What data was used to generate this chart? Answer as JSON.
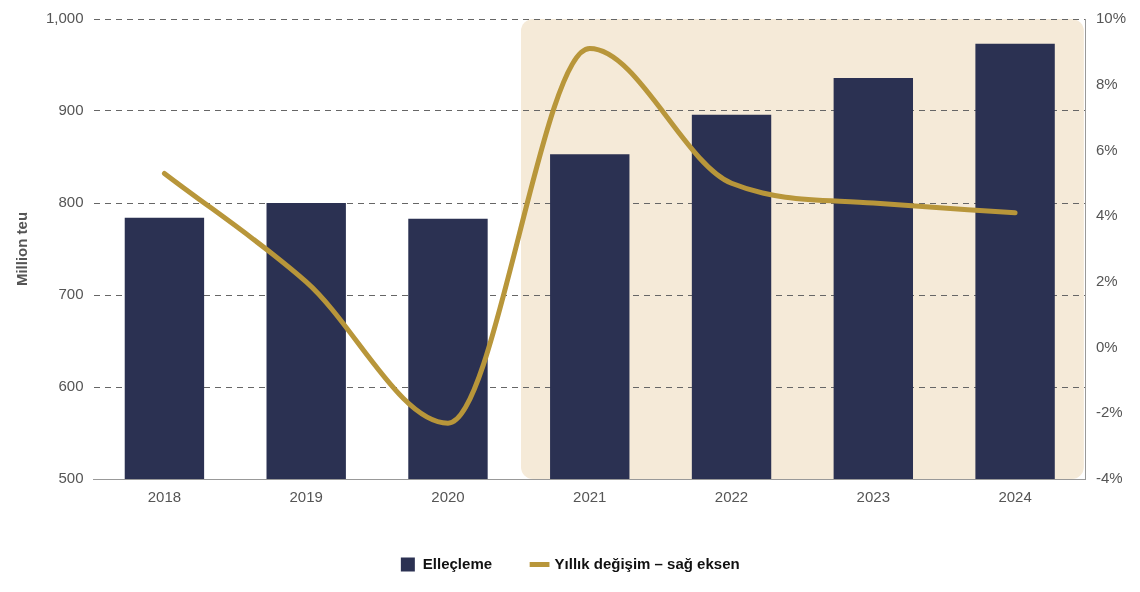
{
  "chart_data": {
    "type": "bar",
    "ylabel": "Million teu",
    "categories": [
      "2018",
      "2019",
      "2020",
      "2021",
      "2022",
      "2023",
      "2024"
    ],
    "series": [
      {
        "name": "Elleçleme",
        "color": "#2b3152",
        "values": [
          784,
          800,
          783,
          853,
          896,
          936,
          973
        ]
      },
      {
        "name": "Yıllık değişim – sağ eksen",
        "type": "line",
        "axis": "y2",
        "color": "#b8963a",
        "values": [
          5.3,
          2.0,
          -2.3,
          9.1,
          5.0,
          4.4,
          4.1
        ]
      }
    ],
    "ylim": [
      500,
      1000
    ],
    "yticks": [
      500,
      600,
      700,
      800,
      900,
      {
        "value": 1000,
        "label": "1,000"
      }
    ],
    "y2lim": [
      -4,
      10
    ],
    "y2ticks": [
      {
        "value": -4,
        "label": "-4%"
      },
      {
        "value": -2,
        "label": "-2%"
      },
      {
        "value": 0,
        "label": "0%"
      },
      {
        "value": 2,
        "label": "2%"
      },
      {
        "value": 4,
        "label": "4%"
      },
      {
        "value": 6,
        "label": "6%"
      },
      {
        "value": 8,
        "label": "8%"
      },
      {
        "value": 10,
        "label": "10%"
      }
    ],
    "bands": [
      {
        "axis": "x",
        "from": "2021",
        "to": "2024",
        "color": "#f5ead8"
      }
    ],
    "grid": "y",
    "legend": "bottom",
    "marker": "none",
    "line_style": "solid"
  }
}
